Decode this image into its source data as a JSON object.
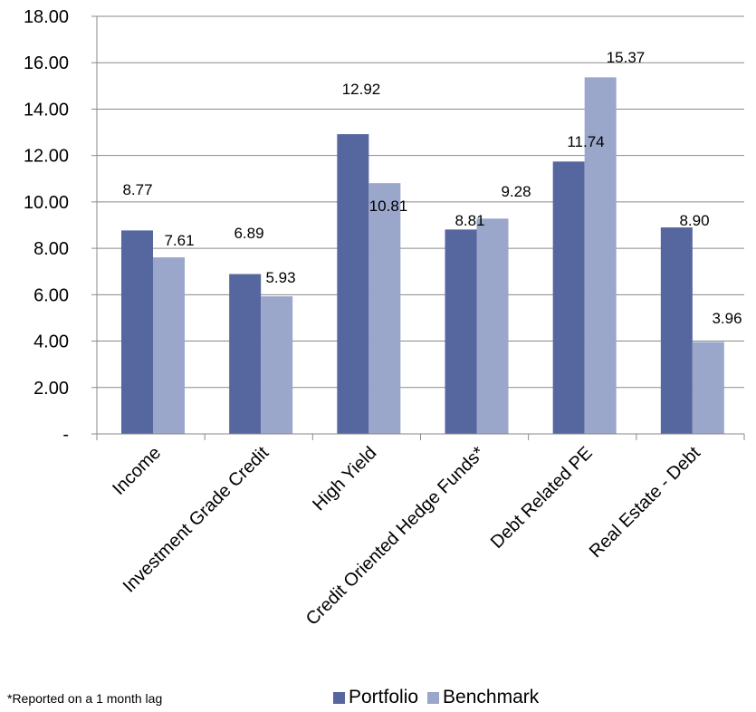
{
  "chart_data": {
    "type": "bar",
    "categories": [
      "Income",
      "Investment Grade Credit",
      "High Yield",
      "Credit Oriented Hedge Funds*",
      "Debt Related PE",
      "Real Estate - Debt"
    ],
    "series": [
      {
        "name": "Portfolio",
        "values": [
          8.77,
          6.89,
          12.92,
          8.81,
          11.74,
          8.9
        ],
        "labels": [
          "8.77",
          "6.89",
          "12.92",
          "8.81",
          "11.74",
          "8.90"
        ],
        "color": "#56669e"
      },
      {
        "name": "Benchmark",
        "values": [
          7.61,
          5.93,
          10.81,
          9.28,
          15.37,
          3.96
        ],
        "labels": [
          "7.61",
          "5.93",
          "10.81",
          "9.28",
          "15.37",
          "3.96"
        ],
        "color": "#9aa7cb"
      }
    ],
    "ylim": [
      0,
      18
    ],
    "yticks": [
      0,
      2,
      4,
      6,
      8,
      10,
      12,
      14,
      16,
      18
    ],
    "ytick_labels": [
      "-",
      "2.00",
      "4.00",
      "6.00",
      "8.00",
      "10.00",
      "12.00",
      "14.00",
      "16.00",
      "18.00"
    ],
    "legend_position": "bottom",
    "grid": "horizontal"
  },
  "footnote": "*Reported on a 1 month lag",
  "legend": {
    "portfolio": "Portfolio",
    "benchmark": "Benchmark",
    "portfolio_color": "#56669e",
    "benchmark_color": "#9aa7cb"
  }
}
